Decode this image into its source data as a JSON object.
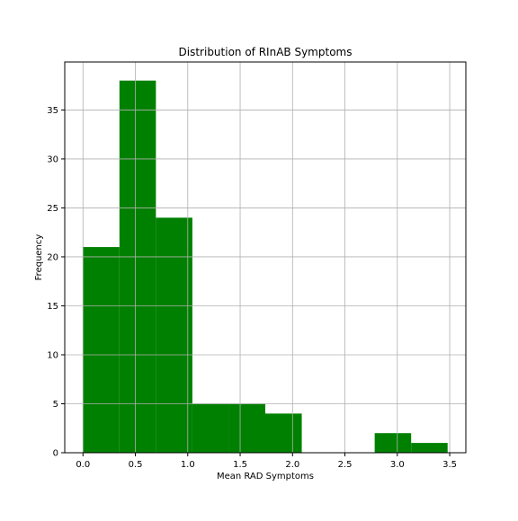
{
  "chart_data": {
    "type": "histogram",
    "title": "Distribution of RInAB Symptoms",
    "xlabel": "Mean RAD Symptoms",
    "ylabel": "Frequency",
    "xlim": [
      -0.174,
      3.654
    ],
    "ylim": [
      0,
      39.9
    ],
    "grid": true,
    "bar_color": "#008000",
    "xticks": [
      0.0,
      0.5,
      1.0,
      1.5,
      2.0,
      2.5,
      3.0,
      3.5
    ],
    "xtick_labels": [
      "0.0",
      "0.5",
      "1.0",
      "1.5",
      "2.0",
      "2.5",
      "3.0",
      "3.5"
    ],
    "yticks": [
      0,
      5,
      10,
      15,
      20,
      25,
      30,
      35
    ],
    "ytick_labels": [
      "0",
      "5",
      "10",
      "15",
      "20",
      "25",
      "30",
      "35"
    ],
    "bins": [
      {
        "x0": 0.0,
        "x1": 0.348,
        "count": 21
      },
      {
        "x0": 0.348,
        "x1": 0.696,
        "count": 38
      },
      {
        "x0": 0.696,
        "x1": 1.044,
        "count": 24
      },
      {
        "x0": 1.044,
        "x1": 1.392,
        "count": 5
      },
      {
        "x0": 1.392,
        "x1": 1.74,
        "count": 5
      },
      {
        "x0": 1.74,
        "x1": 2.088,
        "count": 4
      },
      {
        "x0": 2.088,
        "x1": 2.436,
        "count": 0
      },
      {
        "x0": 2.436,
        "x1": 2.784,
        "count": 0
      },
      {
        "x0": 2.784,
        "x1": 3.132,
        "count": 2
      },
      {
        "x0": 3.132,
        "x1": 3.48,
        "count": 1
      }
    ]
  }
}
